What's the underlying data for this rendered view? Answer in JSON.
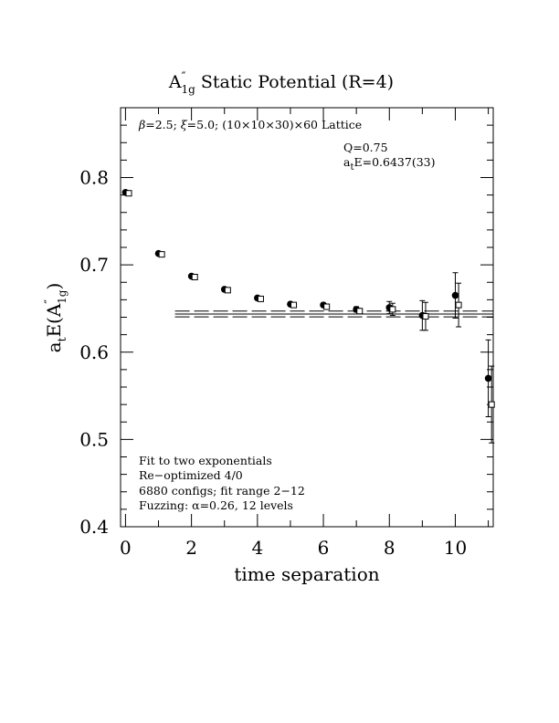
{
  "chart_data": {
    "type": "scatter",
    "title": {
      "base": "A",
      "prime": "″",
      "sub": "1g",
      "rest": " Static Potential (R=4)"
    },
    "xlabel": "time separation",
    "ylabel": {
      "pre": "a",
      "pre_sub": "t",
      "mid": "E(A",
      "prime": "″",
      "sub": "1g",
      "post": ")"
    },
    "xlim": [
      -0.15,
      11.15
    ],
    "ylim": [
      0.4,
      0.88
    ],
    "xticks": [
      0,
      2,
      4,
      6,
      8,
      10
    ],
    "xtick_labels": [
      "0",
      "2",
      "4",
      "6",
      "8",
      "10"
    ],
    "yticks": [
      0.4,
      0.5,
      0.6,
      0.7,
      0.8
    ],
    "ytick_labels": [
      "0.4",
      "0.5",
      "0.6",
      "0.7",
      "0.8"
    ],
    "grid": false,
    "series": [
      {
        "marker": "filled-circle",
        "x": [
          0,
          1,
          2,
          3,
          4,
          5,
          6,
          7,
          8,
          9,
          10,
          11
        ],
        "y": [
          0.783,
          0.713,
          0.687,
          0.672,
          0.662,
          0.655,
          0.654,
          0.649,
          0.651,
          0.642,
          0.665,
          0.57
        ],
        "err": [
          0.001,
          0.001,
          0.001,
          0.001,
          0.001,
          0.002,
          0.002,
          0.003,
          0.007,
          0.017,
          0.026,
          0.044
        ]
      },
      {
        "marker": "open-square",
        "x": [
          0.1,
          1.1,
          2.1,
          3.1,
          4.1,
          5.1,
          6.1,
          7.1,
          8.1,
          9.1,
          10.1,
          11.1
        ],
        "y": [
          0.782,
          0.712,
          0.686,
          0.671,
          0.661,
          0.654,
          0.652,
          0.647,
          0.649,
          0.641,
          0.654,
          0.54
        ],
        "err": [
          0.001,
          0.001,
          0.001,
          0.001,
          0.001,
          0.002,
          0.002,
          0.003,
          0.007,
          0.016,
          0.025,
          0.044
        ]
      }
    ],
    "fit": {
      "x_range": [
        1.5,
        11.15
      ],
      "value": 0.6437,
      "error": 0.0033
    },
    "annotations": {
      "lattice": {
        "beta": "β",
        "xi": "ξ",
        "text_a": "=2.5; ",
        "text_b": "=5.0; (10×10×30)×60 Lattice"
      },
      "q": "Q=0.75",
      "energy": {
        "pre": "a",
        "sub": "t",
        "post": "E=0.6437(33)"
      },
      "notes": [
        "Fit to two exponentials",
        "Re−optimized 4/0",
        "6880 configs; fit range 2−12",
        "Fuzzing: α=0.26, 12 levels"
      ]
    }
  }
}
